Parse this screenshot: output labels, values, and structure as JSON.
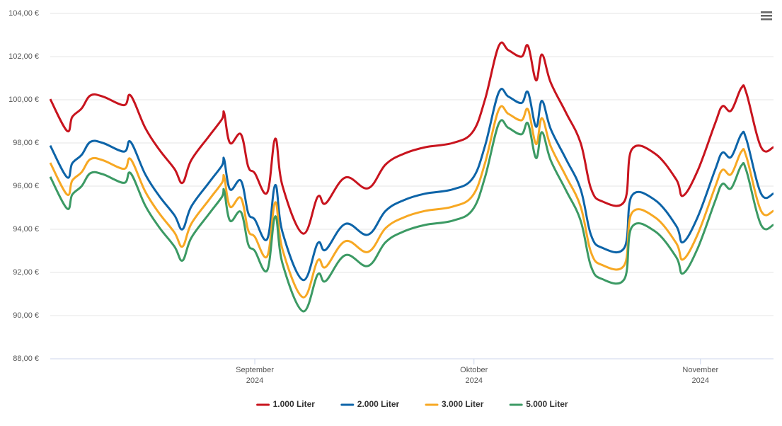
{
  "chart_data": {
    "type": "line",
    "x": [
      3,
      5.3,
      6,
      7.3,
      8.5,
      10.2,
      13.1,
      14,
      16,
      17.9,
      20,
      21.1,
      22.3,
      24.7,
      26.5,
      26.8,
      27.6,
      29.1,
      30.1,
      31,
      32.7,
      33.8,
      34.8,
      37.6,
      39.6,
      40.7,
      43.4,
      46.5,
      48.9,
      51.4,
      54.3,
      58.1,
      60.8,
      62.5,
      64.4,
      65.7,
      67.5,
      68.4,
      69.5,
      70.3,
      71.5,
      73.6,
      75.6,
      77,
      78.5,
      81.6,
      82.6,
      85.8,
      88.7,
      89.6,
      91.6,
      94,
      95,
      96.2,
      97.6,
      98.3,
      100.3,
      102
    ],
    "series": [
      {
        "name": "1.000 Liter",
        "color": "#c8141e",
        "values": [
          100.03,
          98.56,
          99.2,
          99.6,
          100.2,
          100.15,
          99.75,
          100.2,
          98.7,
          97.7,
          96.8,
          96.15,
          97.2,
          98.3,
          99.1,
          99.4,
          98.0,
          98.4,
          96.9,
          96.6,
          95.7,
          98.2,
          96.0,
          93.8,
          95.5,
          95.2,
          96.4,
          95.9,
          97.0,
          97.5,
          97.8,
          98.0,
          98.5,
          100.0,
          102.5,
          102.3,
          102.0,
          102.5,
          100.9,
          102.1,
          100.8,
          99.4,
          98.0,
          95.9,
          95.3,
          95.3,
          97.7,
          97.5,
          96.3,
          95.55,
          96.7,
          98.9,
          99.7,
          99.5,
          100.55,
          100.3,
          97.8,
          97.8
        ]
      },
      {
        "name": "2.000 Liter",
        "color": "#0d64a8",
        "values": [
          97.88,
          96.41,
          97.05,
          97.45,
          98.05,
          98.0,
          97.6,
          98.05,
          96.55,
          95.55,
          94.65,
          94.0,
          95.05,
          96.15,
          96.95,
          97.25,
          95.85,
          96.25,
          94.75,
          94.45,
          93.55,
          96.05,
          93.85,
          91.65,
          93.35,
          93.05,
          94.25,
          93.75,
          94.85,
          95.35,
          95.65,
          95.85,
          96.35,
          97.85,
          100.35,
          100.15,
          99.85,
          100.35,
          98.75,
          99.95,
          98.65,
          97.25,
          95.85,
          93.75,
          93.15,
          93.15,
          95.55,
          95.35,
          94.15,
          93.4,
          94.55,
          96.75,
          97.55,
          97.35,
          98.4,
          98.15,
          95.65,
          95.65
        ]
      },
      {
        "name": "3.000 Liter",
        "color": "#f7a823",
        "values": [
          97.08,
          95.61,
          96.25,
          96.65,
          97.25,
          97.2,
          96.8,
          97.25,
          95.75,
          94.75,
          93.85,
          93.2,
          94.25,
          95.35,
          96.15,
          96.45,
          95.05,
          95.45,
          93.95,
          93.65,
          92.75,
          95.25,
          93.05,
          90.85,
          92.55,
          92.25,
          93.45,
          92.95,
          94.05,
          94.55,
          94.85,
          95.05,
          95.55,
          97.05,
          99.55,
          99.35,
          99.05,
          99.55,
          97.95,
          99.15,
          97.85,
          96.45,
          95.05,
          92.95,
          92.35,
          92.35,
          94.75,
          94.55,
          93.35,
          92.6,
          93.75,
          95.95,
          96.75,
          96.55,
          97.6,
          97.35,
          94.85,
          94.85
        ]
      },
      {
        "name": "5.000 Liter",
        "color": "#3c9a64",
        "values": [
          96.43,
          94.96,
          95.6,
          96.0,
          96.6,
          96.55,
          96.15,
          96.6,
          95.1,
          94.1,
          93.2,
          92.55,
          93.6,
          94.7,
          95.5,
          95.8,
          94.4,
          94.8,
          93.3,
          93.0,
          92.1,
          94.6,
          92.4,
          90.2,
          91.9,
          91.6,
          92.8,
          92.3,
          93.4,
          93.9,
          94.2,
          94.4,
          94.9,
          96.4,
          98.9,
          98.7,
          98.4,
          98.9,
          97.3,
          98.5,
          97.2,
          95.8,
          94.4,
          92.3,
          91.7,
          91.7,
          94.1,
          93.9,
          92.7,
          91.95,
          93.1,
          95.3,
          96.1,
          95.9,
          96.95,
          96.7,
          94.2,
          94.2
        ]
      }
    ],
    "xlim": [
      3,
      102
    ],
    "xticks": [
      {
        "value": 31,
        "label": "September 2024"
      },
      {
        "value": 61,
        "label": "Oktober 2024"
      },
      {
        "value": 92,
        "label": "November 2024"
      }
    ],
    "ylim": [
      88,
      104
    ],
    "yticks": [
      {
        "value": 88,
        "label": "88,00 €"
      },
      {
        "value": 90,
        "label": "90,00 €"
      },
      {
        "value": 92,
        "label": "92,00 €"
      },
      {
        "value": 94,
        "label": "94,00 €"
      },
      {
        "value": 96,
        "label": "96,00 €"
      },
      {
        "value": 98,
        "label": "98,00 €"
      },
      {
        "value": 100,
        "label": "100,00 €"
      },
      {
        "value": 102,
        "label": "102,00 €"
      },
      {
        "value": 104,
        "label": "104,00 €"
      }
    ],
    "grid": true,
    "legend": "bottom"
  }
}
